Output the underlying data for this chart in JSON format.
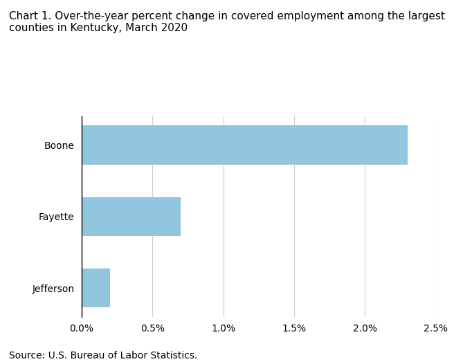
{
  "title": "Chart 1. Over-the-year percent change in covered employment among the largest\ncounties in Kentucky, March 2020",
  "categories": [
    "Jefferson",
    "Fayette",
    "Boone"
  ],
  "values": [
    0.002,
    0.007,
    0.023
  ],
  "bar_color": "#92c5de",
  "xlim": [
    0,
    0.025
  ],
  "xticks": [
    0.0,
    0.005,
    0.01,
    0.015,
    0.02,
    0.025
  ],
  "xticklabels": [
    "0.0%",
    "0.5%",
    "1.0%",
    "1.5%",
    "2.0%",
    "2.5%"
  ],
  "source": "Source: U.S. Bureau of Labor Statistics.",
  "title_fontsize": 11,
  "label_fontsize": 10,
  "tick_fontsize": 10,
  "source_fontsize": 10,
  "bar_height": 0.55,
  "background_color": "#ffffff",
  "grid_color": "#cccccc",
  "left_spine_color": "#000000"
}
